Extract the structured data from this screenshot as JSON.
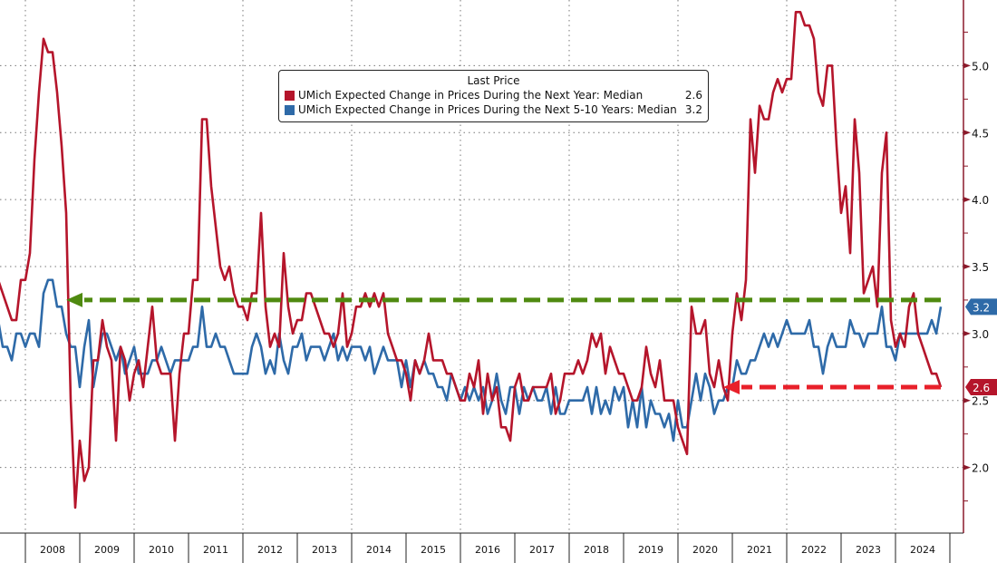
{
  "chart_data": {
    "type": "line",
    "x_start": "2007-07",
    "x_frequency": "monthly",
    "x_tick_labels": [
      "2008",
      "2009",
      "2010",
      "2011",
      "2012",
      "2013",
      "2014",
      "2015",
      "2016",
      "2017",
      "2018",
      "2019",
      "2020",
      "2021",
      "2022",
      "2023",
      "2024"
    ],
    "y_axis_position": "right",
    "y_ticks": [
      "2.0",
      "2.5",
      "3.0",
      "3.5",
      "4.0",
      "4.5",
      "5.0"
    ],
    "ylim": [
      1.51,
      5.49
    ],
    "grid": true,
    "legend": {
      "title": "Last Price",
      "placement": "top-center"
    },
    "series": [
      {
        "name": "UMich Expected Change in Prices During the Next Year: Median",
        "last_value": "2.6",
        "color": "#b5152b",
        "values": [
          3.4,
          3.3,
          3.2,
          3.1,
          3.1,
          3.4,
          3.4,
          3.6,
          4.3,
          4.8,
          5.2,
          5.1,
          5.1,
          4.8,
          4.4,
          3.9,
          2.5,
          1.7,
          2.2,
          1.9,
          2.0,
          2.8,
          2.8,
          3.1,
          2.9,
          2.8,
          2.2,
          2.9,
          2.8,
          2.5,
          2.7,
          2.8,
          2.6,
          2.9,
          3.2,
          2.8,
          2.7,
          2.7,
          2.7,
          2.2,
          2.7,
          3.0,
          3.0,
          3.4,
          3.4,
          4.6,
          4.6,
          4.1,
          3.8,
          3.5,
          3.4,
          3.5,
          3.3,
          3.2,
          3.2,
          3.1,
          3.3,
          3.3,
          3.9,
          3.2,
          2.9,
          3.0,
          2.9,
          3.6,
          3.2,
          3.0,
          3.1,
          3.1,
          3.3,
          3.3,
          3.2,
          3.1,
          3.0,
          3.0,
          2.9,
          3.0,
          3.3,
          2.9,
          3.0,
          3.2,
          3.2,
          3.3,
          3.2,
          3.3,
          3.2,
          3.3,
          3.0,
          2.9,
          2.8,
          2.8,
          2.7,
          2.5,
          2.8,
          2.7,
          2.8,
          3.0,
          2.8,
          2.8,
          2.8,
          2.7,
          2.7,
          2.6,
          2.5,
          2.5,
          2.7,
          2.6,
          2.8,
          2.4,
          2.7,
          2.5,
          2.6,
          2.3,
          2.3,
          2.2,
          2.6,
          2.7,
          2.5,
          2.5,
          2.6,
          2.6,
          2.6,
          2.6,
          2.7,
          2.4,
          2.5,
          2.7,
          2.7,
          2.7,
          2.8,
          2.7,
          2.8,
          3.0,
          2.9,
          3.0,
          2.7,
          2.9,
          2.8,
          2.7,
          2.7,
          2.6,
          2.5,
          2.5,
          2.6,
          2.9,
          2.7,
          2.6,
          2.8,
          2.5,
          2.5,
          2.5,
          2.3,
          2.2,
          2.1,
          3.2,
          3.0,
          3.0,
          3.1,
          2.7,
          2.6,
          2.8,
          2.6,
          2.5,
          3.0,
          3.3,
          3.1,
          3.4,
          4.6,
          4.2,
          4.7,
          4.6,
          4.6,
          4.8,
          4.9,
          4.8,
          4.9,
          4.9,
          5.4,
          5.4,
          5.3,
          5.3,
          5.2,
          4.8,
          4.7,
          5.0,
          5.0,
          4.4,
          3.9,
          4.1,
          3.6,
          4.6,
          4.2,
          3.3,
          3.4,
          3.5,
          3.2,
          4.2,
          4.5,
          3.1,
          2.9,
          3.0,
          2.9,
          3.2,
          3.3,
          3.0,
          2.9,
          2.8,
          2.7,
          2.7,
          2.6
        ]
      },
      {
        "name": "UMich Expected Change in Prices During the Next 5-10 Years: Median",
        "last_value": "3.2",
        "color": "#2e6aa8",
        "values": [
          3.1,
          2.9,
          2.9,
          2.8,
          3.0,
          3.0,
          2.9,
          3.0,
          3.0,
          2.9,
          3.3,
          3.4,
          3.4,
          3.2,
          3.2,
          3.0,
          2.9,
          2.9,
          2.6,
          2.9,
          3.1,
          2.6,
          2.8,
          3.0,
          3.0,
          2.9,
          2.8,
          2.9,
          2.7,
          2.8,
          2.9,
          2.7,
          2.7,
          2.7,
          2.8,
          2.8,
          2.9,
          2.8,
          2.7,
          2.8,
          2.8,
          2.8,
          2.8,
          2.9,
          2.9,
          3.2,
          2.9,
          2.9,
          3.0,
          2.9,
          2.9,
          2.8,
          2.7,
          2.7,
          2.7,
          2.7,
          2.9,
          3.0,
          2.9,
          2.7,
          2.8,
          2.7,
          3.0,
          2.8,
          2.7,
          2.9,
          2.9,
          3.0,
          2.8,
          2.9,
          2.9,
          2.9,
          2.8,
          2.9,
          3.0,
          2.8,
          2.9,
          2.8,
          2.9,
          2.9,
          2.9,
          2.8,
          2.9,
          2.7,
          2.8,
          2.9,
          2.8,
          2.8,
          2.8,
          2.6,
          2.8,
          2.6,
          2.8,
          2.7,
          2.8,
          2.7,
          2.7,
          2.6,
          2.6,
          2.5,
          2.7,
          2.6,
          2.5,
          2.6,
          2.5,
          2.6,
          2.5,
          2.6,
          2.4,
          2.5,
          2.7,
          2.5,
          2.4,
          2.6,
          2.6,
          2.4,
          2.6,
          2.5,
          2.6,
          2.5,
          2.5,
          2.6,
          2.4,
          2.6,
          2.4,
          2.4,
          2.5,
          2.5,
          2.5,
          2.5,
          2.6,
          2.4,
          2.6,
          2.4,
          2.5,
          2.4,
          2.6,
          2.5,
          2.6,
          2.3,
          2.5,
          2.3,
          2.6,
          2.3,
          2.5,
          2.4,
          2.4,
          2.3,
          2.4,
          2.2,
          2.5,
          2.3,
          2.3,
          2.5,
          2.7,
          2.5,
          2.7,
          2.6,
          2.4,
          2.5,
          2.5,
          2.6,
          2.6,
          2.8,
          2.7,
          2.7,
          2.8,
          2.8,
          2.9,
          3.0,
          2.9,
          3.0,
          2.9,
          3.0,
          3.1,
          3.0,
          3.0,
          3.0,
          3.0,
          3.1,
          2.9,
          2.9,
          2.7,
          2.9,
          3.0,
          2.9,
          2.9,
          2.9,
          3.1,
          3.0,
          3.0,
          2.9,
          3.0,
          3.0,
          3.0,
          3.2,
          2.9,
          2.9,
          2.8,
          3.0,
          3.0,
          3.0,
          3.0,
          3.0,
          3.0,
          3.0,
          3.1,
          3.0,
          3.2
        ]
      }
    ],
    "annotations": [
      {
        "type": "dashed-arrow",
        "color": "#4f8a10",
        "y": 3.25,
        "from": "2024-11",
        "to": "2008-10"
      },
      {
        "type": "dashed-arrow",
        "color": "#e8202a",
        "y": 2.6,
        "from": "2024-11",
        "to": "2020-11"
      }
    ]
  }
}
